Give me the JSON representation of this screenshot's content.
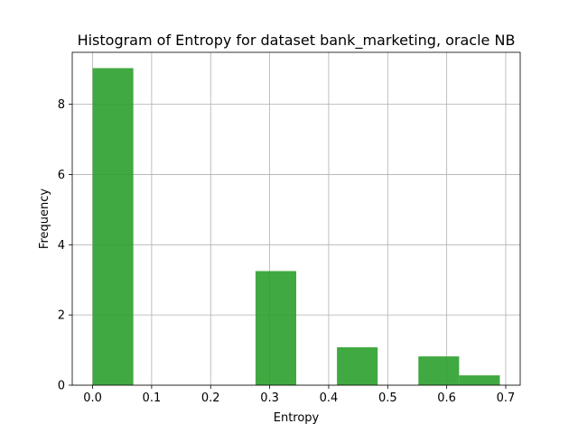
{
  "chart_data": {
    "type": "bar",
    "title": "Histogram of Entropy for dataset bank_marketing, oracle NB",
    "xlabel": "Entropy",
    "ylabel": "Frequency",
    "bins": [
      {
        "start": 0.0,
        "end": 0.069,
        "value": 9.03
      },
      {
        "start": 0.069,
        "end": 0.138,
        "value": 0
      },
      {
        "start": 0.138,
        "end": 0.207,
        "value": 0
      },
      {
        "start": 0.207,
        "end": 0.276,
        "value": 0
      },
      {
        "start": 0.276,
        "end": 0.345,
        "value": 3.25
      },
      {
        "start": 0.345,
        "end": 0.414,
        "value": 0
      },
      {
        "start": 0.414,
        "end": 0.483,
        "value": 1.08
      },
      {
        "start": 0.483,
        "end": 0.552,
        "value": 0
      },
      {
        "start": 0.552,
        "end": 0.621,
        "value": 0.82
      },
      {
        "start": 0.621,
        "end": 0.69,
        "value": 0.28
      }
    ],
    "xlim": [
      -0.0345,
      0.7245
    ],
    "ylim": [
      0,
      9.48
    ],
    "xticks": [
      0.0,
      0.1,
      0.2,
      0.3,
      0.4,
      0.5,
      0.6,
      0.7
    ],
    "xtick_labels": [
      "0.0",
      "0.1",
      "0.2",
      "0.3",
      "0.4",
      "0.5",
      "0.6",
      "0.7"
    ],
    "yticks": [
      0,
      2,
      4,
      6,
      8
    ],
    "ytick_labels": [
      "0",
      "2",
      "4",
      "6",
      "8"
    ],
    "grid": true,
    "bar_color": "#2ca02c",
    "bar_opacity": 0.9
  }
}
